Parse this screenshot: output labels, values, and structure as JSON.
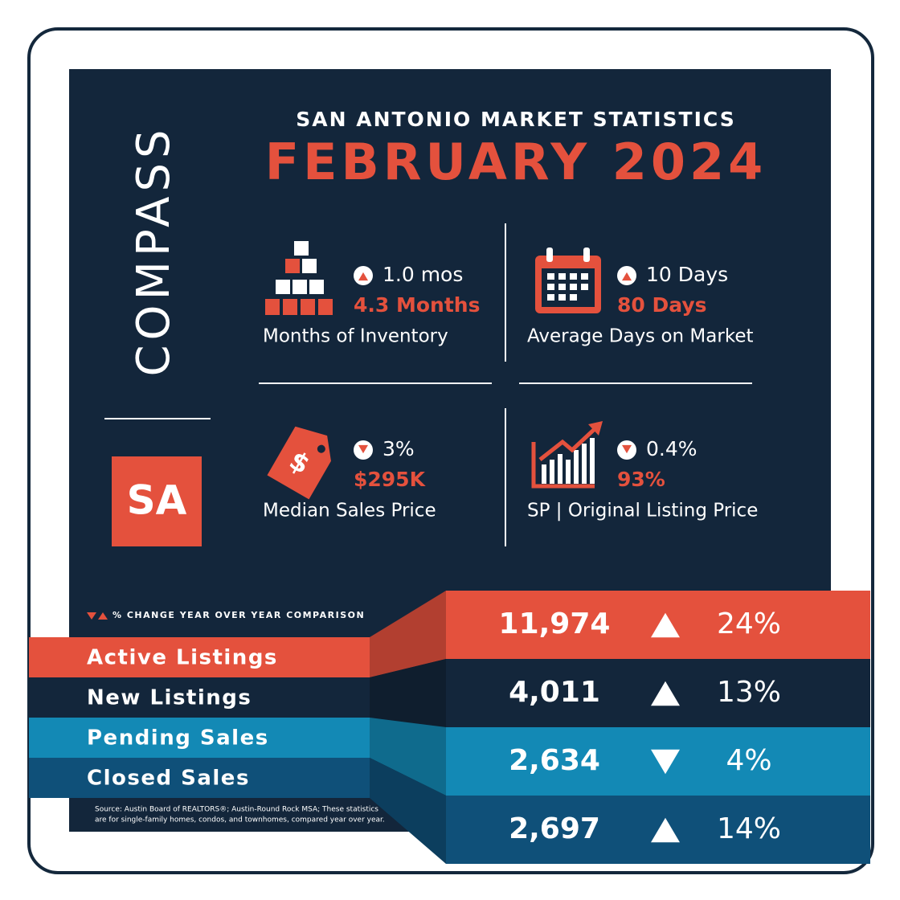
{
  "brand": "COMPASS",
  "badge": "SA",
  "header": {
    "subtitle": "SAN ANTONIO MARKET STATISTICS",
    "title": "FEBRUARY 2024"
  },
  "stats": [
    {
      "change": "1.0 mos",
      "direction": "up",
      "value": "4.3 Months",
      "label": "Months of Inventory"
    },
    {
      "change": "10 Days",
      "direction": "up",
      "value": "80 Days",
      "label": "Average Days on Market"
    },
    {
      "change": "3%",
      "direction": "down",
      "value": "$295K",
      "label": "Median Sales Price"
    },
    {
      "change": "0.4%",
      "direction": "down",
      "value": "93%",
      "label": "SP | Original Listing Price"
    }
  ],
  "legend_note": "% CHANGE YEAR OVER YEAR COMPARISON",
  "rows": [
    {
      "label": "Active Listings",
      "value": "11,974",
      "direction": "up",
      "change": "24%",
      "color": "#e4513d"
    },
    {
      "label": "New Listings",
      "value": "4,011",
      "direction": "up",
      "change": "13%",
      "color": "#13263b"
    },
    {
      "label": "Pending Sales",
      "value": "2,634",
      "direction": "down",
      "change": "4%",
      "color": "#1389b5"
    },
    {
      "label": "Closed Sales",
      "value": "2,697",
      "direction": "up",
      "change": "14%",
      "color": "#0f5079"
    }
  ],
  "source": [
    "Source: Austin Board of REALTORS®; Austin-Round Rock MSA; These statistics",
    "are for single-family homes, condos, and townhomes, compared year over year."
  ]
}
